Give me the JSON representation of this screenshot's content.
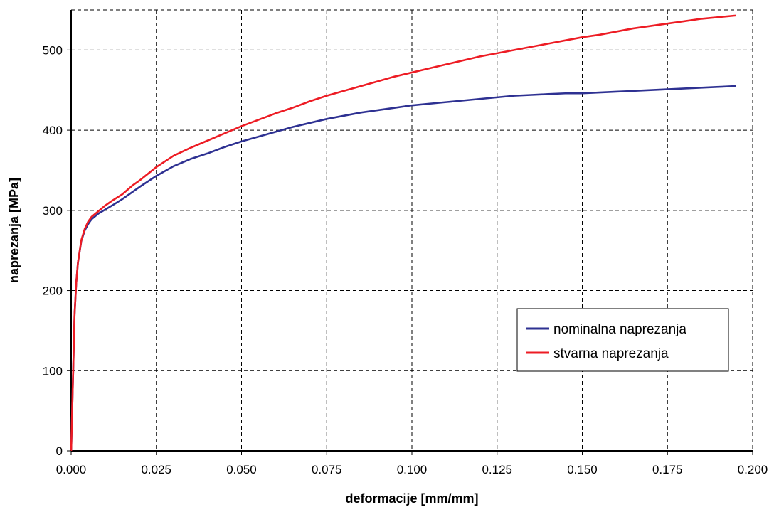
{
  "chart_data": {
    "type": "line",
    "title": "",
    "xlabel": "deformacije [mm/mm]",
    "ylabel": "naprezanja [MPa]",
    "xlim": [
      0,
      0.2
    ],
    "ylim": [
      0,
      550
    ],
    "x_ticks": [
      "0.000",
      "0.025",
      "0.050",
      "0.075",
      "0.100",
      "0.125",
      "0.150",
      "0.175",
      "0.200"
    ],
    "y_ticks": [
      "0",
      "100",
      "200",
      "300",
      "400",
      "500"
    ],
    "grid": true,
    "grid_style": "dashed",
    "legend_position": "center-right",
    "series": [
      {
        "name": "nominalna naprezanja",
        "color": "#2e3192",
        "x": [
          0,
          0.0006,
          0.001,
          0.0015,
          0.002,
          0.003,
          0.004,
          0.005,
          0.006,
          0.008,
          0.01,
          0.012,
          0.015,
          0.018,
          0.02,
          0.025,
          0.03,
          0.035,
          0.04,
          0.045,
          0.05,
          0.055,
          0.06,
          0.065,
          0.07,
          0.075,
          0.08,
          0.085,
          0.09,
          0.095,
          0.1,
          0.105,
          0.11,
          0.115,
          0.12,
          0.125,
          0.13,
          0.135,
          0.14,
          0.145,
          0.15,
          0.155,
          0.16,
          0.165,
          0.17,
          0.175,
          0.18,
          0.185,
          0.19,
          0.195
        ],
        "y": [
          0,
          100,
          170,
          210,
          235,
          262,
          275,
          283,
          289,
          296,
          301,
          306,
          314,
          323,
          329,
          343,
          355,
          364,
          371,
          379,
          386,
          392,
          398,
          404,
          409,
          414,
          418,
          422,
          425,
          428,
          431,
          433,
          435,
          437,
          439,
          441,
          443,
          444,
          445,
          446,
          446,
          447,
          448,
          449,
          450,
          451,
          452,
          453,
          454,
          455
        ]
      },
      {
        "name": "stvarna naprezanja",
        "color": "#ed1c24",
        "x": [
          0,
          0.0006,
          0.001,
          0.0015,
          0.002,
          0.003,
          0.004,
          0.005,
          0.006,
          0.008,
          0.01,
          0.012,
          0.015,
          0.018,
          0.02,
          0.025,
          0.03,
          0.035,
          0.04,
          0.045,
          0.05,
          0.055,
          0.06,
          0.065,
          0.07,
          0.075,
          0.08,
          0.085,
          0.09,
          0.095,
          0.1,
          0.105,
          0.11,
          0.115,
          0.12,
          0.125,
          0.13,
          0.135,
          0.14,
          0.145,
          0.15,
          0.155,
          0.16,
          0.165,
          0.17,
          0.175,
          0.18,
          0.185,
          0.19,
          0.195
        ],
        "y": [
          0,
          100,
          170,
          210,
          235,
          263,
          277,
          286,
          292,
          299,
          306,
          312,
          320,
          331,
          337,
          354,
          368,
          378,
          387,
          396,
          405,
          413,
          421,
          428,
          436,
          443,
          449,
          455,
          461,
          467,
          472,
          477,
          482,
          487,
          492,
          496,
          500,
          504,
          508,
          512,
          516,
          519,
          523,
          527,
          530,
          533,
          536,
          539,
          541,
          543
        ]
      }
    ]
  }
}
